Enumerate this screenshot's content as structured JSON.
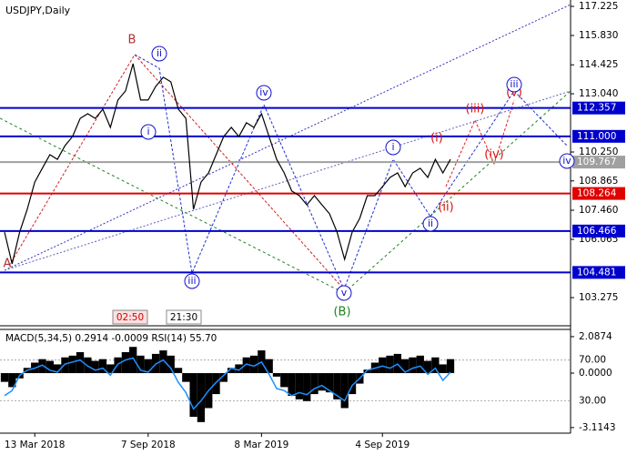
{
  "chart_data": [
    {
      "type": "line",
      "title": "USDJPY,Daily",
      "color": "#000000",
      "categories": [
        null,
        null,
        null,
        null,
        "13 Mar 2018",
        null,
        null,
        null,
        null,
        null,
        null,
        null,
        null,
        null,
        null,
        null,
        null,
        null,
        null,
        "7 Sep 2018",
        null,
        null,
        null,
        null,
        null,
        null,
        null,
        null,
        null,
        null,
        null,
        null,
        null,
        null,
        "8 Mar 2019",
        null,
        null,
        null,
        null,
        null,
        null,
        null,
        null,
        null,
        null,
        null,
        null,
        null,
        null,
        null,
        "4 Sep 2019",
        null,
        null,
        null,
        null,
        null,
        null,
        null,
        null,
        null
      ],
      "values": [
        106.41,
        104.89,
        106.41,
        107.5,
        108.81,
        109.47,
        110.12,
        109.9,
        110.55,
        110.99,
        111.86,
        112.08,
        111.86,
        112.3,
        111.43,
        112.74,
        113.17,
        114.48,
        112.74,
        112.74,
        113.39,
        113.83,
        113.61,
        112.3,
        111.86,
        107.5,
        108.81,
        109.25,
        110.12,
        110.99,
        111.43,
        110.99,
        111.65,
        111.43,
        112.08,
        110.99,
        109.9,
        109.25,
        108.38,
        108.16,
        107.72,
        108.16,
        107.72,
        107.29,
        106.41,
        105.11,
        106.41,
        107.07,
        108.16,
        108.16,
        108.59,
        109.03,
        109.25,
        108.59,
        109.25,
        109.47,
        109.03,
        109.9,
        109.25,
        109.9
      ],
      "ylim": [
        101.97,
        117.53
      ],
      "yticks": [
        117.225,
        {
          "value": 115.83,
          "label": "115.830"
        },
        114.425,
        {
          "value": 113.04,
          "label": "113.040"
        },
        {
          "value": 110.25,
          "label": "110.250"
        },
        108.865,
        {
          "value": 107.46,
          "label": "107.460"
        },
        106.065,
        103.275
      ],
      "levels": [
        {
          "value": 112.357,
          "label": "112.357",
          "color": "#0000cd"
        },
        {
          "value": 111,
          "label": "111.000",
          "color": "#0000cd"
        },
        {
          "value": 109.767,
          "label": "109.767",
          "color": "#a0a0a0"
        },
        {
          "value": 108.264,
          "label": "108.264",
          "color": "#e00000"
        },
        {
          "value": 106.466,
          "label": "106.466",
          "color": "#0000cd"
        },
        {
          "value": 104.481,
          "label": "104.481",
          "color": "#0000cd"
        }
      ],
      "annotations": [
        {
          "text": "A",
          "color": "#b03030",
          "circled": false
        },
        {
          "text": "B",
          "color": "#b03030",
          "circled": false
        },
        {
          "text": "ii",
          "color": "#1010c8",
          "circled": true
        },
        {
          "text": "i",
          "color": "#1010c8",
          "circled": true
        },
        {
          "text": "iii",
          "color": "#1010c8",
          "circled": true
        },
        {
          "text": "iv",
          "color": "#1010c8",
          "circled": true
        },
        {
          "text": "v",
          "color": "#1010c8",
          "circled": true
        },
        {
          "text": "(B)",
          "color": "#208020",
          "circled": false
        },
        {
          "text": "i",
          "color": "#1010c8",
          "circled": true
        },
        {
          "text": "ii",
          "color": "#1010c8",
          "circled": true
        },
        {
          "text": "(i)",
          "color": "#e01010",
          "circled": false
        },
        {
          "text": "(ii)",
          "color": "#e01010",
          "circled": false
        },
        {
          "text": "(iii)",
          "color": "#e01010",
          "circled": false
        },
        {
          "text": "(iv)",
          "color": "#e01010",
          "circled": false
        },
        {
          "text": "(v)",
          "color": "#e01010",
          "circled": false
        },
        {
          "text": "iii",
          "color": "#1010c8",
          "circled": true
        },
        {
          "text": "iv",
          "color": "#1010c8",
          "circled": true
        }
      ],
      "time_labels": [
        "02:50",
        "21:30"
      ]
    },
    {
      "type": "macd",
      "title": "MACD(5,34,5) 0.2914 -0.0009 RSI(14) 55.70",
      "color": "#000000",
      "values": [
        -0.5,
        -0.8,
        -0.3,
        0.3,
        0.6,
        0.8,
        0.7,
        0.5,
        0.9,
        1.0,
        1.2,
        0.9,
        0.7,
        0.8,
        0.5,
        0.9,
        1.2,
        1.5,
        1.0,
        0.8,
        1.1,
        1.3,
        1.0,
        0.3,
        -0.5,
        -2.5,
        -2.8,
        -2.0,
        -1.2,
        -0.5,
        0.3,
        0.5,
        0.9,
        1.0,
        1.3,
        0.8,
        -0.2,
        -0.8,
        -1.3,
        -1.5,
        -1.6,
        -1.2,
        -1.0,
        -1.1,
        -1.5,
        -2.0,
        -1.2,
        -0.6,
        0.2,
        0.6,
        0.9,
        1.0,
        1.1,
        0.8,
        0.9,
        1.0,
        0.7,
        0.9,
        0.5,
        0.8
      ],
      "ylim": [
        -3.33,
        2.5
      ],
      "yticks": [
        2.0874,
        {
          "value": 0,
          "label": "0.0000"
        },
        -3.1143
      ],
      "y2lim": [
        0,
        100
      ],
      "y2ticks": [
        {
          "value": 70,
          "label": "70.00"
        },
        {
          "value": 30,
          "label": "30.00"
        }
      ],
      "rsi": {
        "color": "#1e90ff",
        "values": [
          35,
          40,
          55,
          60,
          62,
          65,
          60,
          58,
          66,
          68,
          70,
          64,
          60,
          62,
          55,
          66,
          70,
          72,
          60,
          58,
          66,
          70,
          62,
          48,
          38,
          22,
          30,
          40,
          48,
          55,
          62,
          60,
          66,
          64,
          68,
          56,
          42,
          40,
          35,
          38,
          36,
          42,
          45,
          40,
          35,
          30,
          45,
          52,
          60,
          62,
          64,
          62,
          66,
          58,
          62,
          64,
          56,
          62,
          50,
          58
        ]
      }
    }
  ]
}
